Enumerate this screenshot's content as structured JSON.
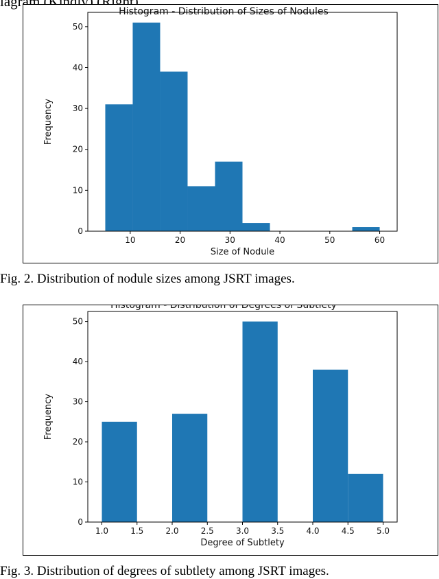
{
  "header_fragment": "lagram (Kindly) (Right)",
  "figures": [
    {
      "caption": "Fig. 2.   Distribution of nodule sizes among JSRT images.",
      "cut_title": "Histogram - Distribution of Sizes of Nodules"
    },
    {
      "caption": "Fig. 3.   Distribution of degrees of subtlety among JSRT images.",
      "cut_title": "Histogram - Distribution of Degrees of Subtlety"
    }
  ],
  "colors": {
    "bar": "#1f77b4",
    "axis": "#000000"
  },
  "chart_data": [
    {
      "type": "bar",
      "title": "",
      "xlabel": "Size of Nodule",
      "ylabel": "Frequency",
      "bins": [
        [
          5,
          10.5
        ],
        [
          10.5,
          16
        ],
        [
          16,
          21.5
        ],
        [
          21.5,
          27
        ],
        [
          27,
          32.5
        ],
        [
          32.5,
          38
        ],
        [
          38,
          43.5
        ],
        [
          43.5,
          49
        ],
        [
          49,
          54.5
        ],
        [
          54.5,
          60
        ]
      ],
      "values": [
        31,
        51,
        39,
        11,
        17,
        2,
        0,
        0,
        0,
        1
      ],
      "xlim": [
        1.5,
        63.5
      ],
      "ylim": [
        0,
        53.5
      ],
      "xticks": [
        10,
        20,
        30,
        40,
        50,
        60
      ],
      "xtick_labels": [
        "10",
        "20",
        "30",
        "40",
        "50",
        "60"
      ],
      "yticks": [
        0,
        10,
        20,
        30,
        40,
        50
      ],
      "ytick_labels": [
        "0",
        "10",
        "20",
        "30",
        "40",
        "50"
      ],
      "grid": false
    },
    {
      "type": "bar",
      "title": "",
      "xlabel": "Degree of Subtlety",
      "ylabel": "Frequency",
      "bins": [
        [
          1.0,
          1.5
        ],
        [
          1.5,
          2.0
        ],
        [
          2.0,
          2.5
        ],
        [
          2.5,
          3.0
        ],
        [
          3.0,
          3.5
        ],
        [
          3.5,
          4.0
        ],
        [
          4.0,
          4.5
        ],
        [
          4.5,
          5.0
        ]
      ],
      "values": [
        25,
        0,
        27,
        0,
        50,
        0,
        38,
        12
      ],
      "xlim": [
        0.8,
        5.2
      ],
      "ylim": [
        0,
        52.5
      ],
      "xticks": [
        1.0,
        1.5,
        2.0,
        2.5,
        3.0,
        3.5,
        4.0,
        4.5,
        5.0
      ],
      "xtick_labels": [
        "1.0",
        "1.5",
        "2.0",
        "2.5",
        "3.0",
        "3.5",
        "4.0",
        "4.5",
        "5.0"
      ],
      "yticks": [
        0,
        10,
        20,
        30,
        40,
        50
      ],
      "ytick_labels": [
        "0",
        "10",
        "20",
        "30",
        "40",
        "50"
      ],
      "grid": false
    }
  ]
}
